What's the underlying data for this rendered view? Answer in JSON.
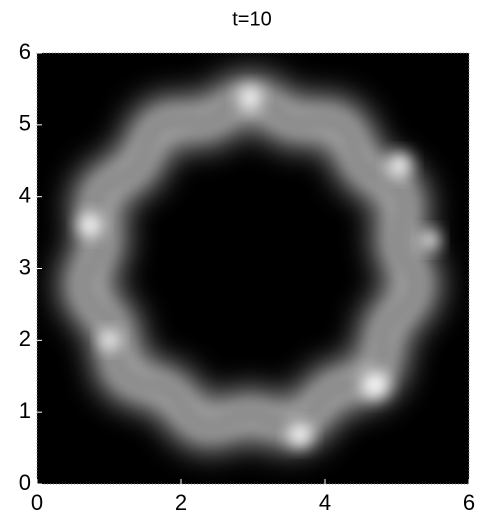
{
  "chart_data": {
    "type": "image",
    "title": "t=10",
    "xlim": [
      0,
      6
    ],
    "ylim": [
      0,
      6
    ],
    "xticks": [
      0,
      2,
      4,
      6
    ],
    "yticks": [
      0,
      1,
      2,
      3,
      4,
      5,
      6
    ]
  }
}
